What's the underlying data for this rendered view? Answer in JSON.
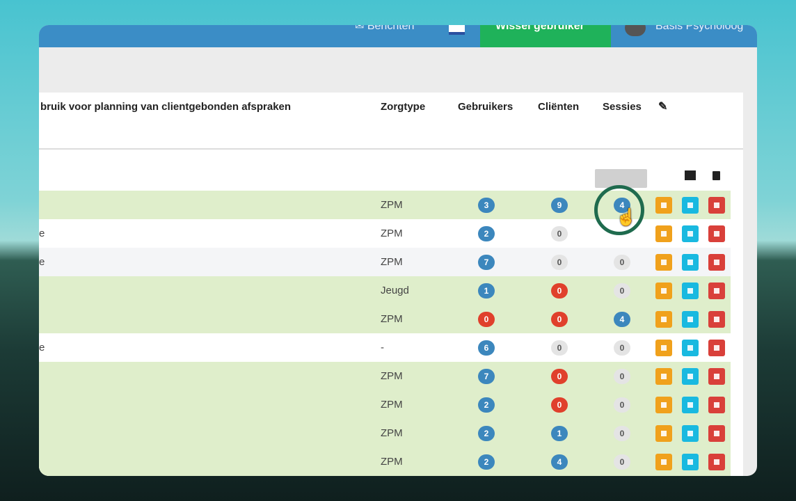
{
  "nav": {
    "messages": "Berichten",
    "switch_user": "Wissel gebruiker",
    "user": "Basis Psycholoog"
  },
  "table": {
    "columns": [
      "bruik voor planning van clientgebonden afspraken",
      "Zorgtype",
      "Gebruikers",
      "Cliënten",
      "Sessies"
    ],
    "rows": [
      {
        "tone": "green",
        "zorgtype": "ZPM",
        "gebruikers": {
          "value": 3,
          "tone": "blue"
        },
        "clienten": {
          "value": 9,
          "tone": "blue"
        },
        "sessies": {
          "value": 4,
          "tone": "blue"
        }
      },
      {
        "tone": "white",
        "name": "e",
        "zorgtype": "ZPM",
        "gebruikers": {
          "value": 2,
          "tone": "blue"
        },
        "clienten": {
          "value": 0,
          "tone": "gray"
        }
      },
      {
        "tone": "light",
        "name": "e",
        "zorgtype": "ZPM",
        "gebruikers": {
          "value": 7,
          "tone": "blue"
        },
        "clienten": {
          "value": 0,
          "tone": "gray"
        },
        "sessies": {
          "value": 0,
          "tone": "gray"
        }
      },
      {
        "tone": "green",
        "zorgtype": "Jeugd",
        "gebruikers": {
          "value": 1,
          "tone": "blue"
        },
        "clienten": {
          "value": 0,
          "tone": "red"
        },
        "sessies": {
          "value": 0,
          "tone": "gray"
        }
      },
      {
        "tone": "green",
        "zorgtype": "ZPM",
        "gebruikers": {
          "value": 0,
          "tone": "red"
        },
        "clienten": {
          "value": 0,
          "tone": "red"
        },
        "sessies": {
          "value": 4,
          "tone": "blue"
        }
      },
      {
        "tone": "white",
        "name": "e",
        "zorgtype": "-",
        "gebruikers": {
          "value": 6,
          "tone": "blue"
        },
        "clienten": {
          "value": 0,
          "tone": "gray"
        },
        "sessies": {
          "value": 0,
          "tone": "gray"
        }
      },
      {
        "tone": "green",
        "zorgtype": "ZPM",
        "gebruikers": {
          "value": 7,
          "tone": "blue"
        },
        "clienten": {
          "value": 0,
          "tone": "red"
        },
        "sessies": {
          "value": 0,
          "tone": "gray"
        }
      },
      {
        "tone": "green",
        "zorgtype": "ZPM",
        "gebruikers": {
          "value": 2,
          "tone": "blue"
        },
        "clienten": {
          "value": 0,
          "tone": "red"
        },
        "sessies": {
          "value": 0,
          "tone": "gray"
        }
      },
      {
        "tone": "green",
        "zorgtype": "ZPM",
        "gebruikers": {
          "value": 2,
          "tone": "blue"
        },
        "clienten": {
          "value": 1,
          "tone": "blue"
        },
        "sessies": {
          "value": 0,
          "tone": "gray"
        }
      },
      {
        "tone": "green",
        "zorgtype": "ZPM",
        "gebruikers": {
          "value": 2,
          "tone": "blue"
        },
        "clienten": {
          "value": 4,
          "tone": "blue"
        },
        "sessies": {
          "value": 0,
          "tone": "gray"
        }
      }
    ]
  }
}
